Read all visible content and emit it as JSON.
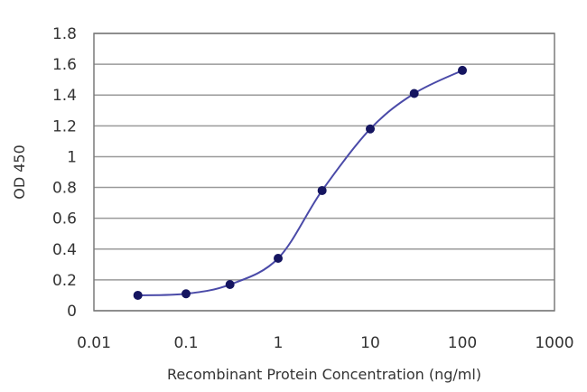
{
  "chart_data": {
    "type": "line",
    "xlabel": "Recombinant Protein Concentration (ng/ml)",
    "ylabel": "OD 450",
    "xscale": "log",
    "xlim": [
      0.01,
      1000
    ],
    "ylim": [
      0,
      1.8
    ],
    "x_ticks": [
      "0.01",
      "0.1",
      "1",
      "10",
      "100",
      "1000"
    ],
    "y_ticks": [
      "0",
      "0.2",
      "0.4",
      "0.6",
      "0.8",
      "1",
      "1.2",
      "1.4",
      "1.6",
      "1.8"
    ],
    "grid": "horizontal",
    "series": [
      {
        "x": [
          0.03,
          0.1,
          0.3,
          1,
          3,
          10,
          30,
          100
        ],
        "values": [
          0.1,
          0.11,
          0.17,
          0.34,
          0.78,
          1.18,
          1.41,
          1.56
        ]
      }
    ],
    "colors": {
      "line": "#4a4aa8",
      "marker": "#151560",
      "grid": "#9a9a9a",
      "frame": "#7a7a7a"
    }
  }
}
